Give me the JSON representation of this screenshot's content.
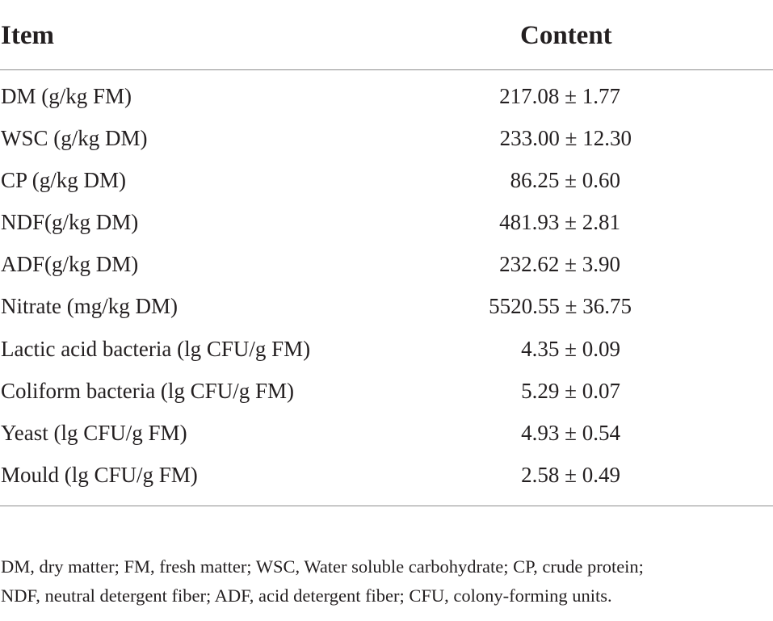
{
  "table": {
    "headers": {
      "item": "Item",
      "content": "Content"
    },
    "rows": [
      {
        "item": "DM (g/kg FM)",
        "content": "217.08 ± 1.77"
      },
      {
        "item": "WSC (g/kg DM)",
        "content": "233.00 ± 12.30"
      },
      {
        "item": "CP (g/kg DM)",
        "content": "86.25 ± 0.60"
      },
      {
        "item": "NDF(g/kg DM)",
        "content": "481.93 ± 2.81"
      },
      {
        "item": "ADF(g/kg DM)",
        "content": "232.62 ± 3.90"
      },
      {
        "item": "Nitrate (mg/kg DM)",
        "content": "5520.55 ± 36.75"
      },
      {
        "item": "Lactic acid bacteria (lg CFU/g FM)",
        "content": "4.35 ± 0.09"
      },
      {
        "item": "Coliform bacteria (lg CFU/g FM)",
        "content": "5.29 ± 0.07"
      },
      {
        "item": "Yeast (lg CFU/g FM)",
        "content": "4.93 ± 0.54"
      },
      {
        "item": "Mould (lg CFU/g FM)",
        "content": "2.58 ± 0.49"
      }
    ]
  },
  "footnote": {
    "line1": "DM, dry matter; FM, fresh matter; WSC, Water soluble carbohydrate; CP, crude protein;",
    "line2": "NDF, neutral detergent fiber; ADF, acid detergent fiber; CFU, colony-forming units."
  }
}
